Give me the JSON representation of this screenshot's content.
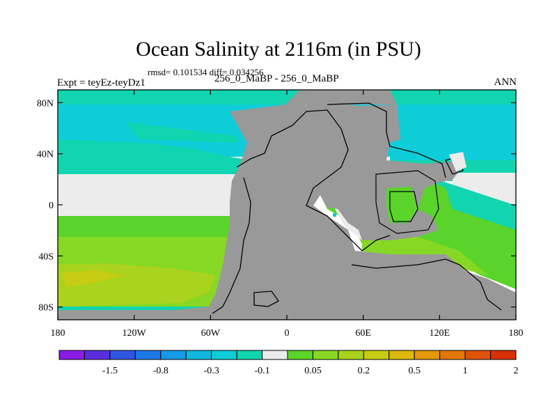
{
  "title": "Ocean Salinity at 2116m (in PSU)",
  "stats": "rmsd= 0.101534 diff= 0.034256",
  "experiment": "Expt = teyEz-teyDz1",
  "case": "256_0_MaBP - 256_0_MaBP",
  "season": "ANN",
  "x_axis": {
    "ticks": [
      -180,
      -120,
      -60,
      0,
      60,
      120,
      180
    ],
    "labels": [
      "180",
      "120W",
      "60W",
      "0",
      "60E",
      "120E",
      "180"
    ]
  },
  "y_axis": {
    "ticks": [
      80,
      40,
      0,
      -40,
      -80
    ],
    "labels": [
      "80N",
      "40N",
      "0",
      "40S",
      "80S"
    ],
    "range": [
      -90,
      90
    ]
  },
  "colorbar": {
    "colors": [
      "#8a1ce6",
      "#5a2ee0",
      "#2f55e3",
      "#1e78e8",
      "#169ae6",
      "#10b8e0",
      "#0fcdd8",
      "#11d4b0",
      "#ececec",
      "#5ad42a",
      "#86d825",
      "#a9d31d",
      "#c8cc12",
      "#dcb80c",
      "#e2990a",
      "#e27808",
      "#de5406",
      "#d92f05"
    ],
    "labels": [
      "-1.5",
      "-0.8",
      "-0.3",
      "-0.1",
      "0.05",
      "0.2",
      "0.5",
      "1",
      "2"
    ]
  },
  "colors": {
    "land": "#999999",
    "cyan": "#0fcdd8",
    "teal": "#11d4b0",
    "neutral": "#ececec",
    "green": "#5ad42a",
    "yellow_green": "#86d825",
    "olive": "#a9d31d",
    "yellow": "#c8cc12"
  }
}
